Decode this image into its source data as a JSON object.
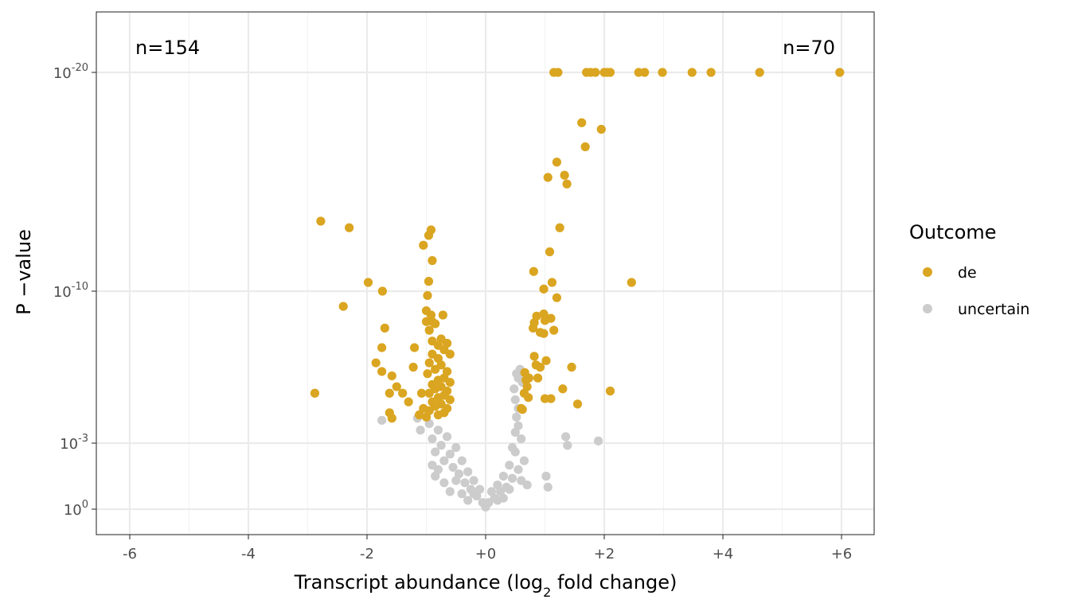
{
  "chart_data": {
    "type": "scatter",
    "xlabel_main": "Transcript abundance (log",
    "xlabel_sub": "2",
    "xlabel_tail": " fold change)",
    "ylabel": "P −value",
    "x_scale": "linear",
    "y_scale": "log10 (reversed, custom)",
    "xlim": [
      -6.55,
      6.55
    ],
    "x_ticks": [
      -6,
      -4,
      -2,
      0,
      2,
      4,
      6
    ],
    "x_tick_labels": [
      "-6",
      "-4",
      "-2",
      "+0",
      "+2",
      "+4",
      "+6"
    ],
    "y_ticks": [
      {
        "base": "10",
        "exp": "-20"
      },
      {
        "base": "10",
        "exp": "-10"
      },
      {
        "base": "10",
        "exp": "-3"
      },
      {
        "base": "10",
        "exp": "0"
      }
    ],
    "grid": true,
    "annotations": [
      {
        "text": "n=154",
        "anchor": "top-left"
      },
      {
        "text": "n=70",
        "anchor": "top-right"
      }
    ],
    "legend": {
      "title": "Outcome",
      "position": "right",
      "entries": [
        {
          "label": "de",
          "color": "#DAA520"
        },
        {
          "label": "uncertain",
          "color": "#CCCCCC"
        }
      ]
    },
    "series": [
      {
        "name": "de",
        "color": "#DAA520",
        "points": [
          [
            1.15,
            -20
          ],
          [
            1.22,
            -20
          ],
          [
            1.7,
            -20
          ],
          [
            1.77,
            -20
          ],
          [
            1.85,
            -20
          ],
          [
            2.0,
            -20
          ],
          [
            2.05,
            -20
          ],
          [
            2.1,
            -20
          ],
          [
            2.58,
            -20
          ],
          [
            2.68,
            -20
          ],
          [
            2.98,
            -20
          ],
          [
            3.48,
            -20
          ],
          [
            3.8,
            -20
          ],
          [
            4.62,
            -20
          ],
          [
            5.97,
            -20
          ],
          [
            1.62,
            -17.7
          ],
          [
            1.68,
            -16.6
          ],
          [
            1.95,
            -17.4
          ],
          [
            1.2,
            -15.9
          ],
          [
            1.05,
            -15.2
          ],
          [
            1.33,
            -15.3
          ],
          [
            1.37,
            -14.9
          ],
          [
            1.25,
            -12.9
          ],
          [
            1.08,
            -11.8
          ],
          [
            0.81,
            -10.9
          ],
          [
            1.12,
            -10.4
          ],
          [
            0.98,
            -10.1
          ],
          [
            1.2,
            -9.7
          ],
          [
            0.98,
            -8.95
          ],
          [
            0.86,
            -8.85
          ],
          [
            1.1,
            -8.75
          ],
          [
            1.0,
            -8.65
          ],
          [
            0.82,
            -8.55
          ],
          [
            0.92,
            -8.1
          ],
          [
            0.98,
            -8.05
          ],
          [
            1.15,
            -8.2
          ],
          [
            0.8,
            -8.3
          ],
          [
            0.82,
            -7.0
          ],
          [
            1.02,
            -6.8
          ],
          [
            0.92,
            -6.5
          ],
          [
            0.85,
            -6.6
          ],
          [
            1.45,
            -6.5
          ],
          [
            0.66,
            -6.25
          ],
          [
            0.73,
            -6.0
          ],
          [
            0.88,
            -6.0
          ],
          [
            0.68,
            -5.9
          ],
          [
            0.7,
            -5.6
          ],
          [
            1.3,
            -5.5
          ],
          [
            0.65,
            -5.3
          ],
          [
            0.72,
            -5.1
          ],
          [
            1.0,
            -5.05
          ],
          [
            1.1,
            -5.05
          ],
          [
            0.6,
            -4.6
          ],
          [
            1.55,
            -4.8
          ],
          [
            0.62,
            -4.55
          ],
          [
            2.1,
            -5.4
          ],
          [
            2.46,
            -10.4
          ],
          [
            -2.78,
            -13.2
          ],
          [
            -2.3,
            -12.9
          ],
          [
            -1.74,
            -10.0
          ],
          [
            -1.98,
            -10.4
          ],
          [
            -2.4,
            -9.3
          ],
          [
            -1.7,
            -8.3
          ],
          [
            -1.75,
            -7.4
          ],
          [
            -1.85,
            -6.7
          ],
          [
            -1.75,
            -6.3
          ],
          [
            -1.58,
            -6.1
          ],
          [
            -1.5,
            -5.6
          ],
          [
            -1.62,
            -5.3
          ],
          [
            -1.4,
            -5.3
          ],
          [
            -1.3,
            -4.9
          ],
          [
            -1.62,
            -4.4
          ],
          [
            -1.58,
            -4.15
          ],
          [
            -2.88,
            -5.3
          ],
          [
            -1.2,
            -7.4
          ],
          [
            -1.22,
            -6.5
          ],
          [
            -1.12,
            -4.3
          ],
          [
            -0.92,
            -12.8
          ],
          [
            -0.96,
            -12.55
          ],
          [
            -1.05,
            -12.1
          ],
          [
            -0.9,
            -11.4
          ],
          [
            -0.96,
            -10.45
          ],
          [
            -0.98,
            -9.8
          ],
          [
            -1.0,
            -9.1
          ],
          [
            -0.92,
            -8.9
          ],
          [
            -0.9,
            -8.6
          ],
          [
            -0.72,
            -8.9
          ],
          [
            -1.0,
            -8.6
          ],
          [
            -0.85,
            -8.5
          ],
          [
            -0.95,
            -8.2
          ],
          [
            -0.9,
            -7.7
          ],
          [
            -0.75,
            -7.8
          ],
          [
            -0.8,
            -7.5
          ],
          [
            -0.65,
            -7.6
          ],
          [
            -0.7,
            -7.3
          ],
          [
            -0.9,
            -7.1
          ],
          [
            -0.8,
            -6.9
          ],
          [
            -0.6,
            -7.1
          ],
          [
            -0.95,
            -6.7
          ],
          [
            -0.75,
            -6.6
          ],
          [
            -0.85,
            -6.4
          ],
          [
            -0.65,
            -6.3
          ],
          [
            -0.98,
            -6.2
          ],
          [
            -0.7,
            -6.0
          ],
          [
            -0.8,
            -5.9
          ],
          [
            -0.6,
            -5.8
          ],
          [
            -0.9,
            -5.7
          ],
          [
            -0.75,
            -5.6
          ],
          [
            -0.85,
            -5.5
          ],
          [
            -0.65,
            -5.4
          ],
          [
            -0.95,
            -5.3
          ],
          [
            -0.7,
            -5.2
          ],
          [
            -0.8,
            -5.1
          ],
          [
            -0.6,
            -5.0
          ],
          [
            -0.9,
            -4.9
          ],
          [
            -0.75,
            -4.8
          ],
          [
            -0.85,
            -4.7
          ],
          [
            -0.65,
            -4.6
          ],
          [
            -0.95,
            -4.5
          ],
          [
            -0.7,
            -4.4
          ],
          [
            -0.8,
            -4.3
          ],
          [
            -1.05,
            -4.6
          ],
          [
            -1.0,
            -4.2
          ],
          [
            -1.08,
            -5.3
          ]
        ]
      },
      {
        "name": "uncertain",
        "color": "#CCCCCC",
        "points": [
          [
            -1.75,
            -4.05
          ],
          [
            -1.15,
            -4.15
          ],
          [
            -1.1,
            -3.6
          ],
          [
            -0.95,
            -3.9
          ],
          [
            -0.9,
            -3.2
          ],
          [
            -0.85,
            -2.6
          ],
          [
            -0.8,
            -3.6
          ],
          [
            -0.75,
            -2.9
          ],
          [
            -0.7,
            -2.2
          ],
          [
            -0.65,
            -3.3
          ],
          [
            -0.6,
            -2.5
          ],
          [
            -0.55,
            -1.9
          ],
          [
            -0.5,
            -2.8
          ],
          [
            -0.45,
            -1.6
          ],
          [
            -0.4,
            -2.2
          ],
          [
            -0.35,
            -1.2
          ],
          [
            -0.3,
            -1.7
          ],
          [
            -0.25,
            -0.9
          ],
          [
            -0.2,
            -1.3
          ],
          [
            -0.15,
            -0.6
          ],
          [
            -0.1,
            -0.9
          ],
          [
            -0.05,
            -0.3
          ],
          [
            0.0,
            -0.1
          ],
          [
            0.05,
            -0.3
          ],
          [
            0.1,
            -0.8
          ],
          [
            0.15,
            -0.5
          ],
          [
            0.2,
            -1.1
          ],
          [
            0.25,
            -0.8
          ],
          [
            0.3,
            -1.5
          ],
          [
            0.35,
            -1.0
          ],
          [
            0.4,
            -2.0
          ],
          [
            0.45,
            -1.4
          ],
          [
            0.5,
            -2.6
          ],
          [
            0.55,
            -1.8
          ],
          [
            0.6,
            -3.2
          ],
          [
            0.65,
            -2.2
          ],
          [
            0.55,
            -3.8
          ],
          [
            0.52,
            -4.2
          ],
          [
            0.5,
            -5.0
          ],
          [
            0.48,
            -5.5
          ],
          [
            0.52,
            -6.2
          ],
          [
            0.58,
            -6.4
          ],
          [
            0.62,
            -5.8
          ],
          [
            0.55,
            -6.0
          ],
          [
            0.7,
            -1.1
          ],
          [
            1.02,
            -1.5
          ],
          [
            1.05,
            -1.0
          ],
          [
            1.38,
            -2.9
          ],
          [
            1.35,
            -3.3
          ],
          [
            1.9,
            -3.1
          ],
          [
            -0.8,
            -1.8
          ],
          [
            -0.7,
            -1.2
          ],
          [
            -0.6,
            -0.8
          ],
          [
            -0.5,
            -1.3
          ],
          [
            -0.4,
            -0.7
          ],
          [
            -0.9,
            -2.0
          ],
          [
            -0.85,
            -1.5
          ],
          [
            0.3,
            -0.5
          ],
          [
            0.4,
            -0.9
          ],
          [
            0.2,
            -0.4
          ],
          [
            -0.3,
            -0.4
          ],
          [
            -0.2,
            -0.7
          ],
          [
            0.6,
            -1.3
          ],
          [
            0.45,
            -2.8
          ],
          [
            0.55,
            -4.6
          ],
          [
            0.5,
            -3.5
          ]
        ]
      }
    ]
  }
}
